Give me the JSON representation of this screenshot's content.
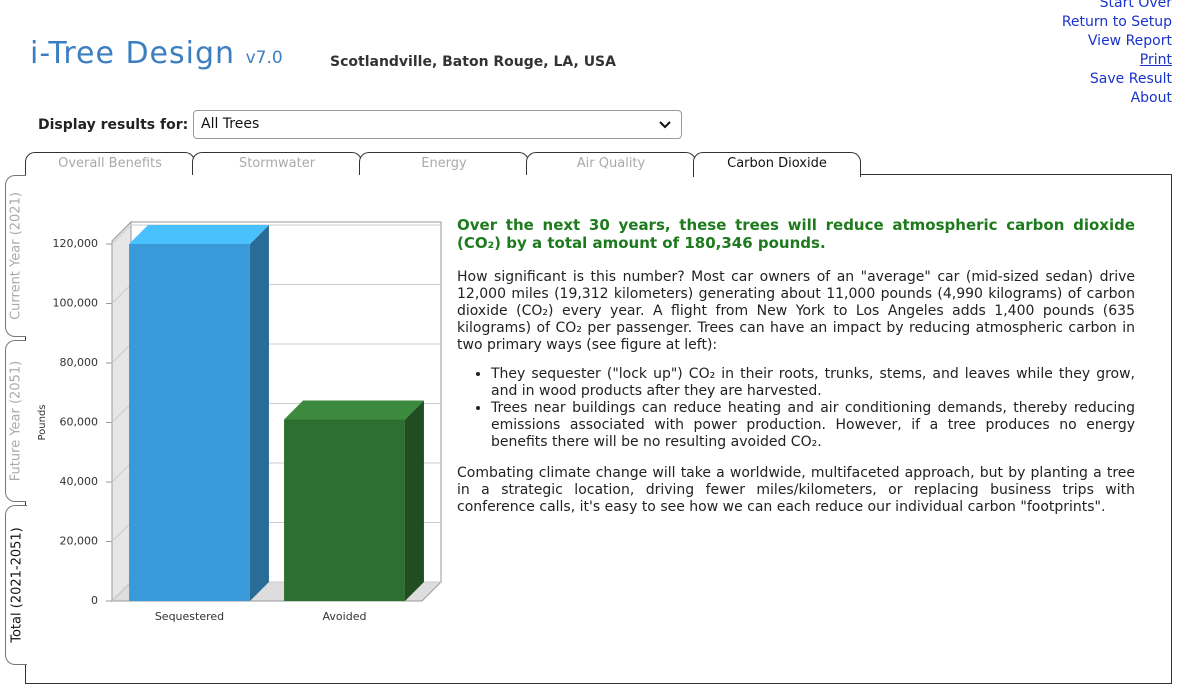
{
  "header": {
    "title": "i-Tree Design",
    "version": "v7.0",
    "location": "Scotlandville, Baton Rouge, LA, USA",
    "links": [
      "Start Over",
      "Return to Setup",
      "View Report",
      "Print",
      "Save Result",
      "About"
    ]
  },
  "filter": {
    "label": "Display results for:",
    "value": "All Trees"
  },
  "tabs": [
    "Overall Benefits",
    "Stormwater",
    "Energy",
    "Air Quality",
    "Carbon Dioxide"
  ],
  "side_tabs": [
    "Current Year (2021)",
    "Future Year (2051)",
    "Total (2021-2051)"
  ],
  "chart_data": {
    "type": "bar",
    "y_label": "Pounds",
    "categories": [
      "Sequestered",
      "Avoided"
    ],
    "values": [
      120000,
      61000
    ],
    "colors": [
      "#3a9ad9",
      "#2f6e31"
    ],
    "ylim": [
      0,
      120000
    ],
    "yticks": [
      0,
      {
        "value": 20000,
        "label": "20,000"
      },
      {
        "value": 40000,
        "label": "40,000"
      },
      {
        "value": 60000,
        "label": "60,000"
      },
      {
        "value": 80000,
        "label": "80,000"
      },
      {
        "value": 100000,
        "label": "100,000"
      },
      {
        "value": 120000,
        "label": "120,000"
      }
    ],
    "grid": true
  },
  "content": {
    "heading": "Over the next 30 years, these trees will reduce atmospheric carbon dioxide (CO₂) by a total amount of 180,346 pounds.",
    "paragraph": "How significant is this number? Most car owners of an \"average\" car (mid-sized sedan) drive 12,000 miles (19,312 kilometers) generating about 11,000 pounds (4,990 kilograms) of carbon dioxide (CO₂) every year. A flight from New York to Los Angeles adds 1,400 pounds (635 kilograms) of CO₂ per passenger. Trees can have an impact by reducing atmospheric carbon in two primary ways (see figure at left):",
    "bullets": [
      "They sequester (\"lock up\") CO₂ in their roots, trunks, stems, and leaves while they grow, and in wood products after they are harvested.",
      "Trees near buildings can reduce heating and air conditioning demands, thereby reducing emissions associated with power production. However, if a tree produces no energy benefits there will be no resulting avoided CO₂."
    ],
    "closing": "Combating climate change will take a worldwide, multifaceted approach, but by planting a tree in a strategic location, driving fewer miles/kilometers, or replacing business trips with conference calls, it's easy to see how we can each reduce our individual carbon \"footprints\"."
  }
}
